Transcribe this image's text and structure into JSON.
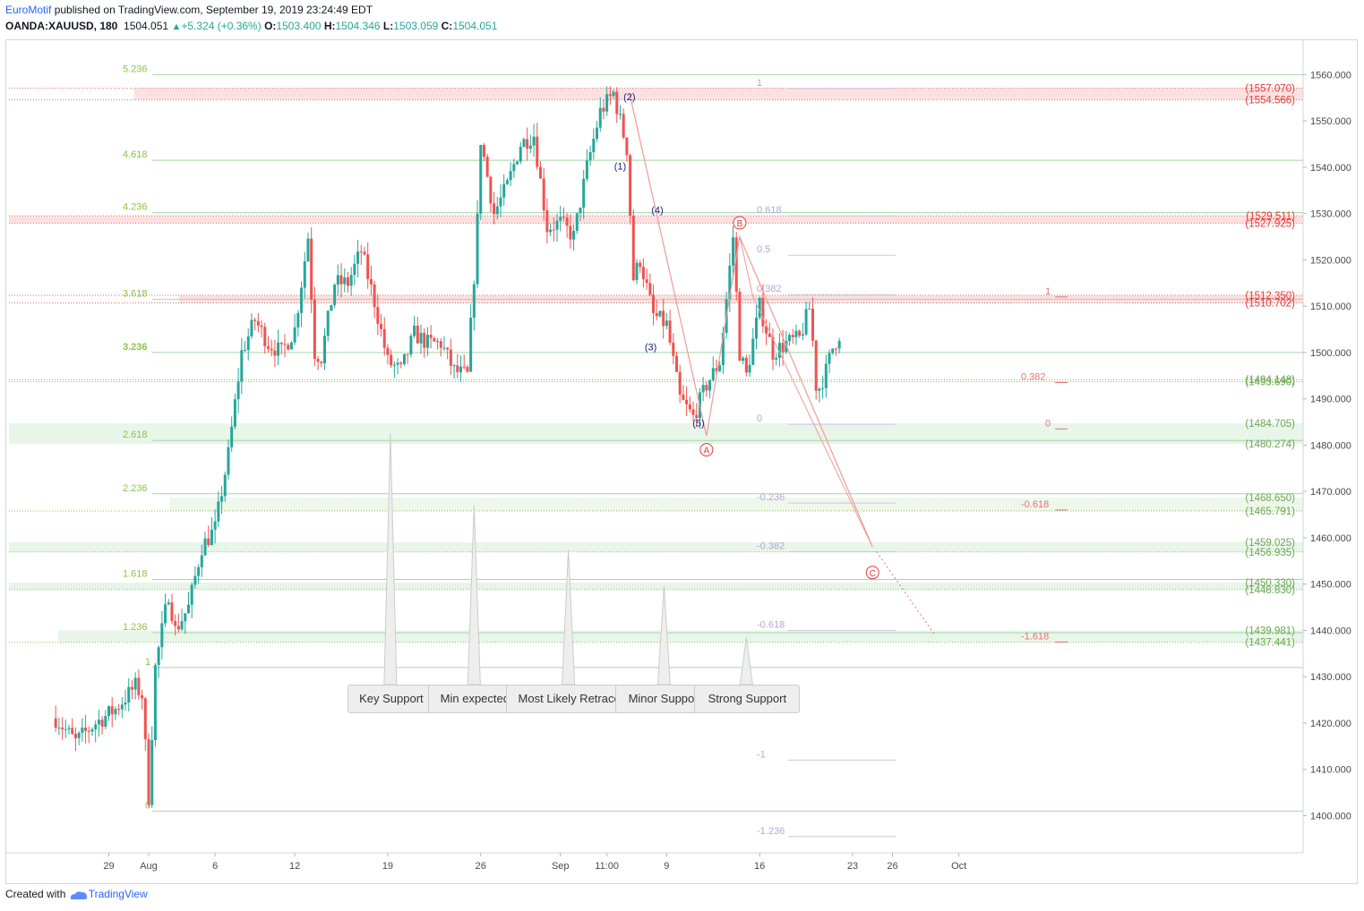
{
  "header": {
    "publisher": "EuroMotif",
    "published_text": "published on TradingView.com, September 19, 2019 23:24:49 EDT",
    "symbol": "OANDA:XAUUSD, 180",
    "last": "1504.051",
    "change": "+5.324 (+0.36%)",
    "o_label": "O:",
    "o": "1503.400",
    "h_label": "H:",
    "h": "1504.346",
    "l_label": "L:",
    "l": "1503.059",
    "c_label": "C:",
    "c": "1504.051",
    "up_arrow_icon": "triangle-up-icon"
  },
  "footer": {
    "created_with": "Created with",
    "brand": "TradingView",
    "logo_icon": "tradingview-cloud-icon"
  },
  "callouts": [
    "Key Support",
    "Min expected",
    "Most Likely Retrace",
    "Minor Support",
    "Strong Support"
  ],
  "colors": {
    "up": "#26a69a",
    "down": "#ef5350",
    "fib_green": "#8bc34a",
    "fib_red": "#e57373",
    "wave_blue": "#1a237e",
    "wave_red": "#e53935",
    "retrace_gray": "#b0a8d4"
  },
  "chart_data": {
    "type": "candlestick",
    "symbol": "OANDA:XAUUSD",
    "timeframe": "180",
    "y_axis": {
      "min": 1395,
      "max": 1565,
      "ticks": [
        1400,
        1410,
        1420,
        1430,
        1440,
        1450,
        1460,
        1470,
        1480,
        1490,
        1500,
        1510,
        1520,
        1530,
        1540,
        1550,
        1560
      ],
      "tick_labels": [
        "1400.000",
        "1410.000",
        "1420.000",
        "1430.000",
        "1440.000",
        "1450.000",
        "1460.000",
        "1470.000",
        "1480.000",
        "1490.000",
        "1500.000",
        "1510.000",
        "1520.000",
        "1530.000",
        "1540.000",
        "1550.000",
        "1560.000"
      ]
    },
    "x_axis": {
      "ticks": [
        {
          "label": "29",
          "day": -3
        },
        {
          "label": "Aug",
          "day": 0
        },
        {
          "label": "6",
          "day": 5
        },
        {
          "label": "12",
          "day": 11
        },
        {
          "label": "19",
          "day": 18
        },
        {
          "label": "26",
          "day": 25
        },
        {
          "label": "Sep",
          "day": 31
        },
        {
          "label": "11:00",
          "day": 34.5
        },
        {
          "label": "9",
          "day": 39
        },
        {
          "label": "16",
          "day": 46
        },
        {
          "label": "23",
          "day": 53
        },
        {
          "label": "26",
          "day": 56
        },
        {
          "label": "Oct",
          "day": 61
        }
      ]
    },
    "price_path": [
      [
        -7.0,
        1421
      ],
      [
        -5.5,
        1416
      ],
      [
        -4.0,
        1420
      ],
      [
        -2.5,
        1423
      ],
      [
        -1.0,
        1428
      ],
      [
        -0.5,
        1426
      ],
      [
        0.0,
        1404
      ],
      [
        0.5,
        1432
      ],
      [
        1.5,
        1448
      ],
      [
        2.0,
        1440
      ],
      [
        3.0,
        1445
      ],
      [
        4.0,
        1458
      ],
      [
        5.0,
        1462
      ],
      [
        6.0,
        1478
      ],
      [
        7.0,
        1500
      ],
      [
        8.0,
        1507
      ],
      [
        9.0,
        1502
      ],
      [
        10.0,
        1500
      ],
      [
        11.0,
        1505
      ],
      [
        12.0,
        1525
      ],
      [
        12.5,
        1500
      ],
      [
        13.0,
        1499
      ],
      [
        14.0,
        1515
      ],
      [
        15.0,
        1515
      ],
      [
        16.0,
        1522
      ],
      [
        17.0,
        1511
      ],
      [
        18.0,
        1498
      ],
      [
        19.0,
        1496
      ],
      [
        20.0,
        1504
      ],
      [
        21.0,
        1502
      ],
      [
        22.0,
        1502
      ],
      [
        23.0,
        1496
      ],
      [
        24.0,
        1495
      ],
      [
        24.7,
        1525
      ],
      [
        25.0,
        1546
      ],
      [
        26.0,
        1530
      ],
      [
        27.0,
        1536
      ],
      [
        28.0,
        1545
      ],
      [
        29.0,
        1547
      ],
      [
        30.0,
        1527
      ],
      [
        31.0,
        1528
      ],
      [
        32.0,
        1525
      ],
      [
        33.0,
        1540
      ],
      [
        34.0,
        1552
      ],
      [
        35.0,
        1556
      ],
      [
        36.0,
        1544
      ],
      [
        36.5,
        1516
      ],
      [
        37.0,
        1520
      ],
      [
        38.0,
        1508
      ],
      [
        39.0,
        1506
      ],
      [
        40.0,
        1490
      ],
      [
        41.0,
        1486
      ],
      [
        42.0,
        1493
      ],
      [
        43.0,
        1498
      ],
      [
        44.0,
        1525
      ],
      [
        44.5,
        1500
      ],
      [
        45.0,
        1495
      ],
      [
        46.0,
        1510
      ],
      [
        47.0,
        1500
      ],
      [
        48.0,
        1502
      ],
      [
        49.0,
        1503
      ],
      [
        49.8,
        1510
      ],
      [
        50.3,
        1491
      ],
      [
        51.0,
        1496
      ],
      [
        51.5,
        1501
      ],
      [
        52.0,
        1504
      ]
    ],
    "fib_extension_levels": [
      {
        "label": "5.236",
        "price": 1560.0
      },
      {
        "label": "4.618",
        "price": 1541.5
      },
      {
        "label": "4.236",
        "price": 1530.2
      },
      {
        "label": "3.618",
        "price": 1511.5
      },
      {
        "label": "3.236",
        "price": 1500.0
      },
      {
        "label": "2.618",
        "price": 1481.0
      },
      {
        "label": "2.236",
        "price": 1469.5
      },
      {
        "label": "1.618",
        "price": 1451.0
      },
      {
        "label": "1.236",
        "price": 1439.5
      },
      {
        "label": "1",
        "price": 1432.0
      },
      {
        "label": "0",
        "price": 1401.0
      }
    ],
    "retracement_levels": [
      {
        "label": "1",
        "price": 1557.0
      },
      {
        "label": "0.618",
        "price": 1529.5
      },
      {
        "label": "0.5",
        "price": 1521.0
      },
      {
        "label": "0.382",
        "price": 1512.5
      },
      {
        "label": "0",
        "price": 1484.5
      },
      {
        "label": "-0.236",
        "price": 1467.5
      },
      {
        "label": "-0.382",
        "price": 1457.0
      },
      {
        "label": "-0.618",
        "price": 1440.0
      },
      {
        "label": "-1",
        "price": 1412.0
      },
      {
        "label": "-1.236",
        "price": 1395.5
      }
    ],
    "small_fib_levels": [
      {
        "label": "1",
        "price": 1512.0
      },
      {
        "label": "0.382",
        "price": 1493.5
      },
      {
        "label": "0",
        "price": 1483.5
      },
      {
        "label": "-0.618",
        "price": 1466.0
      },
      {
        "label": "-1.618",
        "price": 1437.5
      }
    ],
    "price_labels": [
      {
        "text": "(1557.070)",
        "price": 1557.07,
        "color": "red"
      },
      {
        "text": "(1554.566)",
        "price": 1554.566,
        "color": "red"
      },
      {
        "text": "(1529.511)",
        "price": 1529.511,
        "color": "red"
      },
      {
        "text": "(1527.925)",
        "price": 1527.925,
        "color": "red"
      },
      {
        "text": "(1512.350)",
        "price": 1512.35,
        "color": "red"
      },
      {
        "text": "(1510.702)",
        "price": 1510.702,
        "color": "red"
      },
      {
        "text": "(1494.148)",
        "price": 1494.148,
        "color": "green"
      },
      {
        "text": "(1493.690)",
        "price": 1493.69,
        "color": "green"
      },
      {
        "text": "(1484.705)",
        "price": 1484.705,
        "color": "green"
      },
      {
        "text": "(1480.274)",
        "price": 1480.274,
        "color": "green"
      },
      {
        "text": "(1468.650)",
        "price": 1468.65,
        "color": "green"
      },
      {
        "text": "(1465.791)",
        "price": 1465.791,
        "color": "green"
      },
      {
        "text": "(1459.025)",
        "price": 1459.025,
        "color": "green"
      },
      {
        "text": "(1456.935)",
        "price": 1456.935,
        "color": "green"
      },
      {
        "text": "(1450.330)",
        "price": 1450.33,
        "color": "green"
      },
      {
        "text": "(1448.830)",
        "price": 1448.83,
        "color": "green"
      },
      {
        "text": "(1439.981)",
        "price": 1439.981,
        "color": "green"
      },
      {
        "text": "(1437.441)",
        "price": 1437.441,
        "color": "green"
      }
    ],
    "elliott_waves": [
      {
        "label": "(1)",
        "day": 35.5,
        "price": 1539.5
      },
      {
        "label": "(2)",
        "day": 36.2,
        "price": 1554.5
      },
      {
        "label": "(3)",
        "day": 37.8,
        "price": 1500.5
      },
      {
        "label": "(4)",
        "day": 38.3,
        "price": 1530.0
      },
      {
        "label": "(5)",
        "day": 41.4,
        "price": 1484.0
      }
    ],
    "abc_waves": [
      {
        "label": "A",
        "day": 42.0,
        "price": 1479.0
      },
      {
        "label": "B",
        "day": 44.5,
        "price": 1528.0
      },
      {
        "label": "C",
        "day": 54.5,
        "price": 1452.5
      }
    ],
    "callout_anchors": [
      {
        "text": "Key Support",
        "day": 18.2,
        "price": 1482.5
      },
      {
        "text": "Min expected",
        "day": 24.5,
        "price": 1467.0
      },
      {
        "text": "Most Likely Retrace",
        "day": 31.6,
        "price": 1457.5
      },
      {
        "text": "Minor Support",
        "day": 38.8,
        "price": 1449.5
      },
      {
        "text": "Strong Support",
        "day": 45.0,
        "price": 1438.5
      }
    ]
  }
}
